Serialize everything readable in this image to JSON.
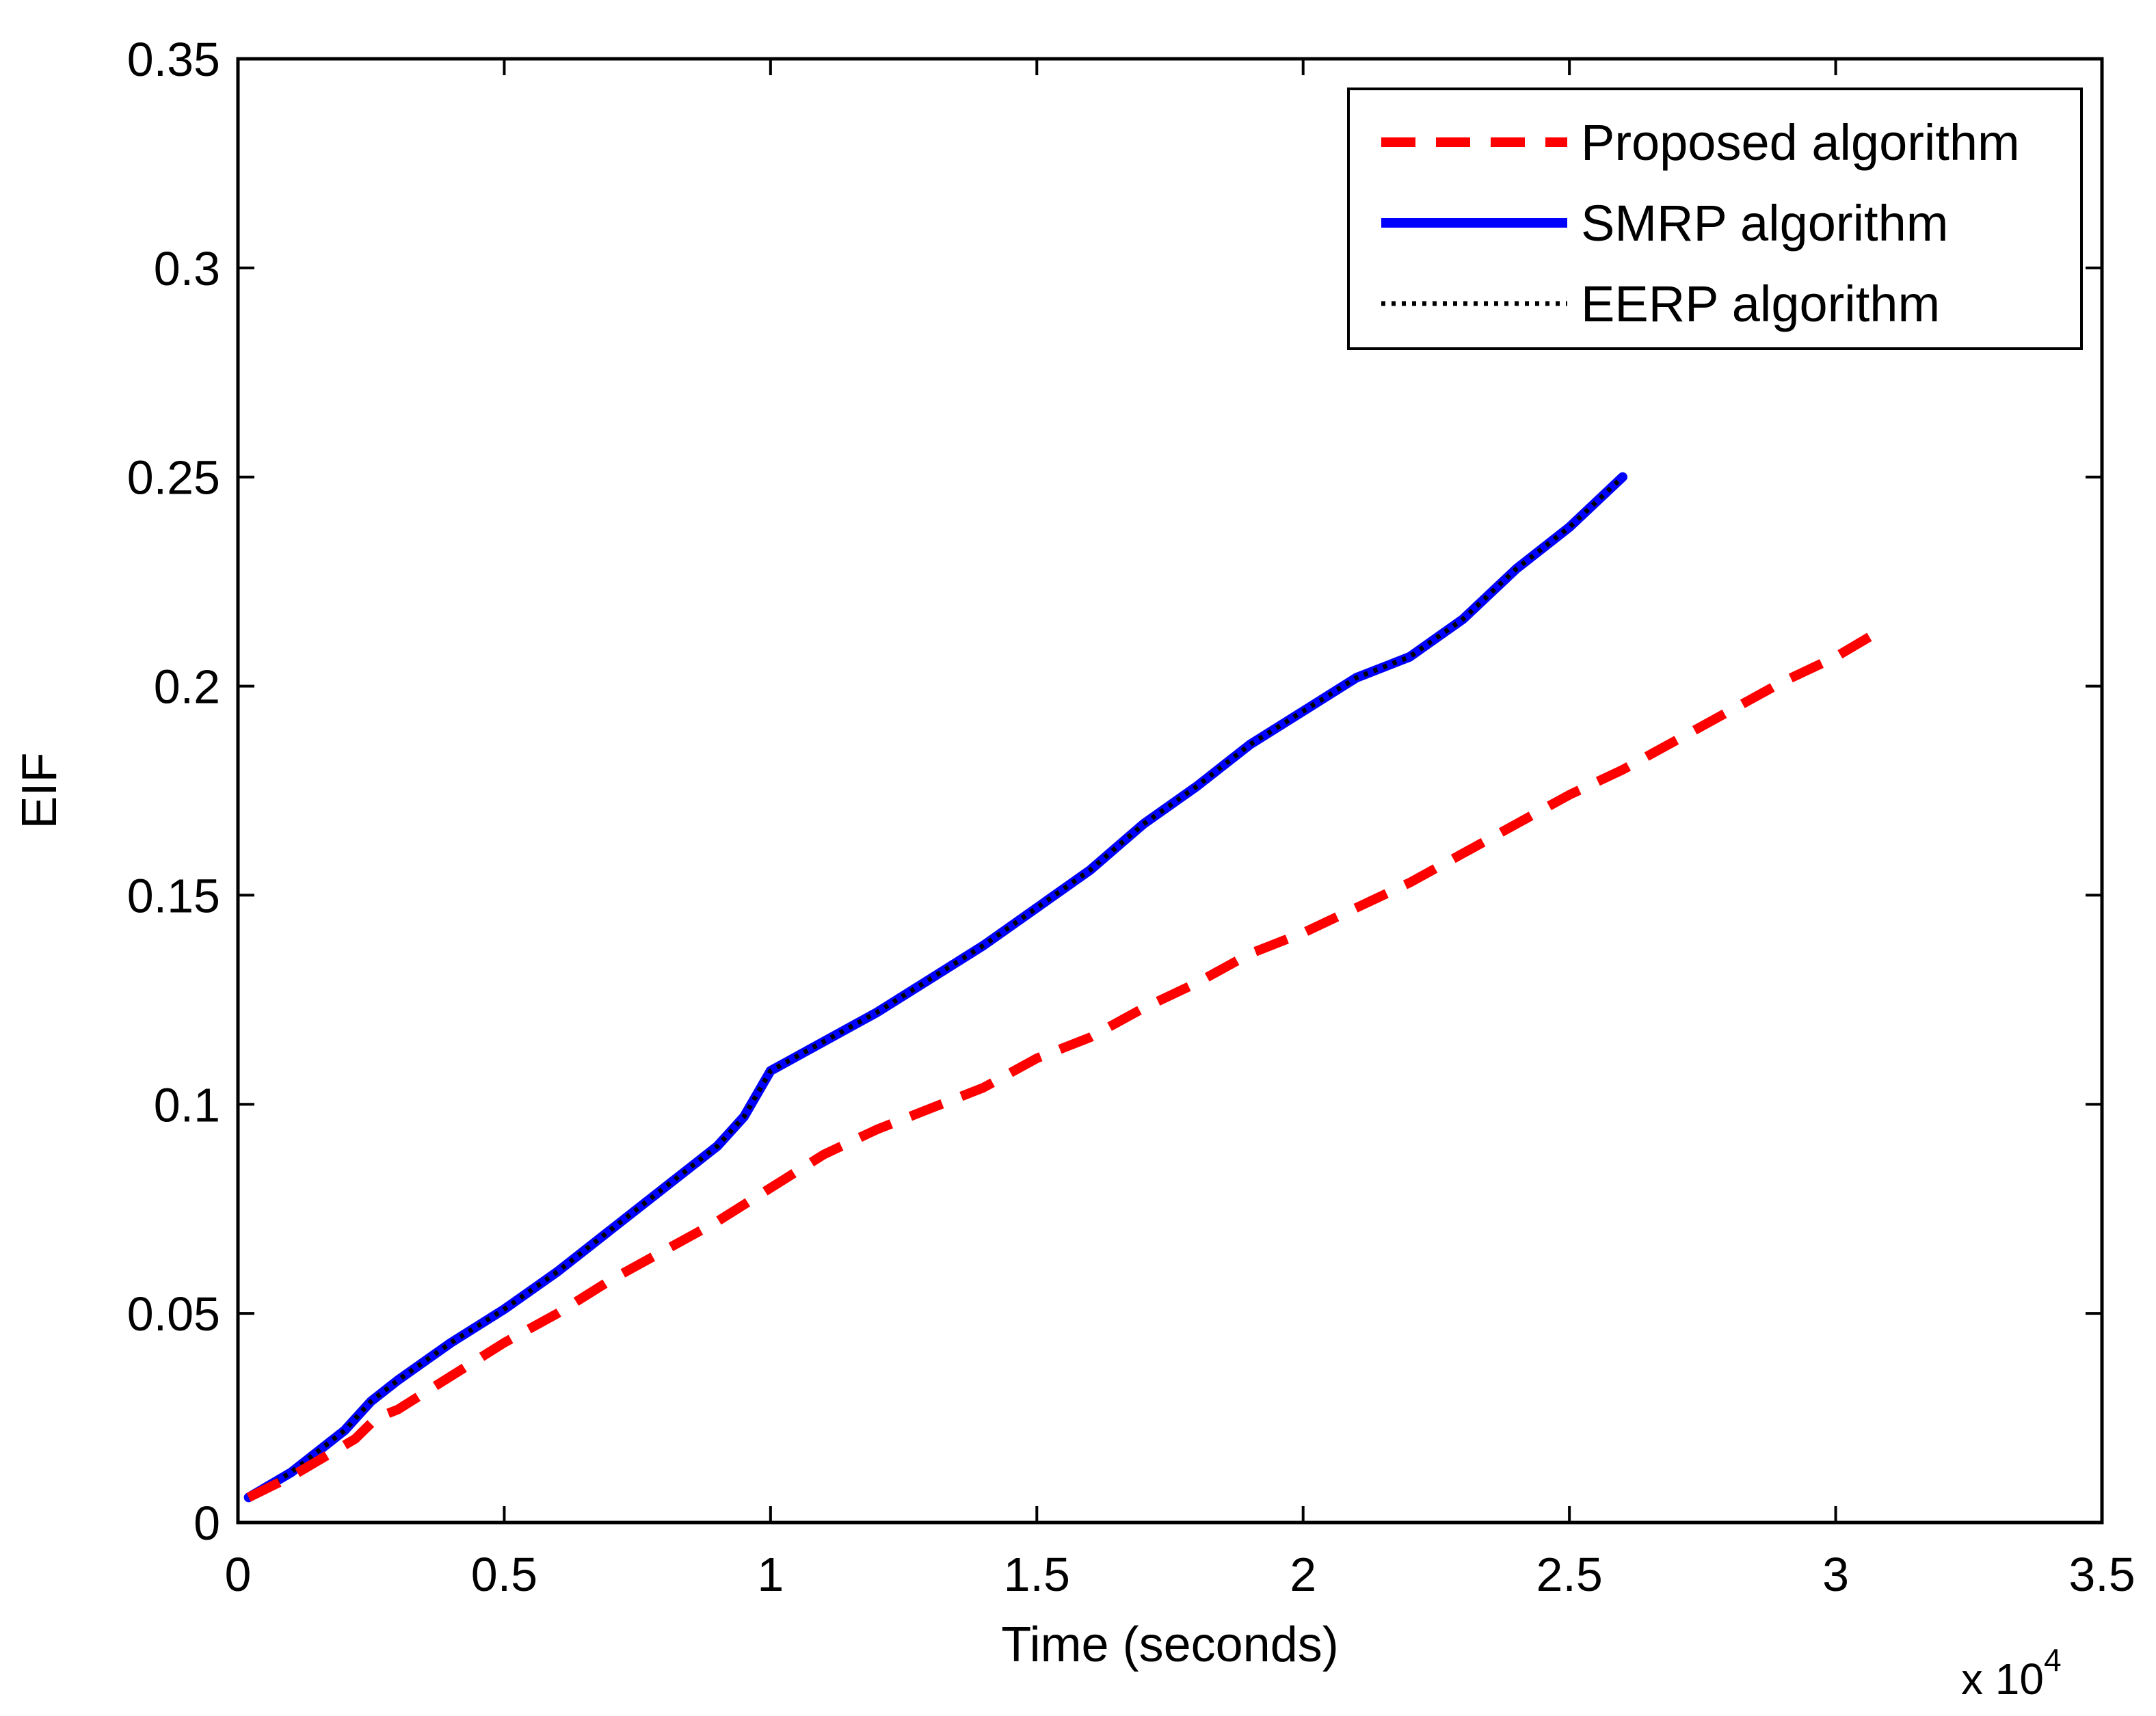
{
  "chart_data": {
    "type": "line",
    "title": "",
    "xlabel": "Time (seconds)",
    "ylabel": "EIF",
    "x_multiplier_label": "x 10",
    "x_multiplier_exponent": "4",
    "xlim": [
      0,
      3.5
    ],
    "ylim": [
      0,
      0.35
    ],
    "xticks": [
      "0",
      "0.5",
      "1",
      "1.5",
      "2",
      "2.5",
      "3",
      "3.5"
    ],
    "yticks": [
      "0",
      "0.05",
      "0.1",
      "0.15",
      "0.2",
      "0.25",
      "0.3",
      "0.35"
    ],
    "grid": false,
    "legend_position": "top-right",
    "series": [
      {
        "name": "Proposed algorithm",
        "color": "#ff0000",
        "style": "dashed",
        "x": [
          0.02,
          0.1,
          0.18,
          0.22,
          0.26,
          0.3,
          0.4,
          0.5,
          0.6,
          0.7,
          0.8,
          0.9,
          1.0,
          1.1,
          1.2,
          1.3,
          1.4,
          1.5,
          1.6,
          1.7,
          1.8,
          1.9,
          2.0,
          2.1,
          2.2,
          2.3,
          2.4,
          2.5,
          2.6,
          2.7,
          2.8,
          2.9,
          3.0,
          3.08
        ],
        "values": [
          0.006,
          0.011,
          0.017,
          0.02,
          0.025,
          0.027,
          0.035,
          0.043,
          0.05,
          0.058,
          0.065,
          0.072,
          0.08,
          0.088,
          0.094,
          0.099,
          0.104,
          0.111,
          0.116,
          0.123,
          0.129,
          0.136,
          0.141,
          0.147,
          0.153,
          0.16,
          0.167,
          0.174,
          0.18,
          0.187,
          0.194,
          0.201,
          0.207,
          0.213
        ]
      },
      {
        "name": "SMRP algorithm",
        "color": "#0000ff",
        "style": "solid",
        "x": [
          0.02,
          0.1,
          0.15,
          0.2,
          0.25,
          0.3,
          0.4,
          0.5,
          0.6,
          0.7,
          0.8,
          0.9,
          0.95,
          1.0,
          1.1,
          1.2,
          1.3,
          1.4,
          1.5,
          1.6,
          1.7,
          1.8,
          1.9,
          2.0,
          2.1,
          2.2,
          2.3,
          2.4,
          2.5,
          2.6
        ],
        "values": [
          0.006,
          0.012,
          0.017,
          0.022,
          0.029,
          0.034,
          0.043,
          0.051,
          0.06,
          0.07,
          0.08,
          0.09,
          0.097,
          0.108,
          0.115,
          0.122,
          0.13,
          0.138,
          0.147,
          0.156,
          0.167,
          0.176,
          0.186,
          0.194,
          0.202,
          0.207,
          0.216,
          0.228,
          0.238,
          0.25
        ]
      },
      {
        "name": "EERP algorithm",
        "color": "#000000",
        "style": "dotted",
        "x": [
          0.02,
          0.1,
          0.15,
          0.2,
          0.25,
          0.3,
          0.4,
          0.5,
          0.6,
          0.7,
          0.8,
          0.9,
          0.95,
          1.0,
          1.1,
          1.2,
          1.3,
          1.4,
          1.5,
          1.6,
          1.7,
          1.8,
          1.9,
          2.0,
          2.1,
          2.2,
          2.3,
          2.4,
          2.5,
          2.6
        ],
        "values": [
          0.006,
          0.012,
          0.017,
          0.022,
          0.029,
          0.034,
          0.043,
          0.051,
          0.06,
          0.07,
          0.08,
          0.09,
          0.097,
          0.108,
          0.115,
          0.122,
          0.13,
          0.138,
          0.147,
          0.156,
          0.167,
          0.176,
          0.186,
          0.194,
          0.202,
          0.207,
          0.216,
          0.228,
          0.238,
          0.25
        ]
      }
    ]
  }
}
